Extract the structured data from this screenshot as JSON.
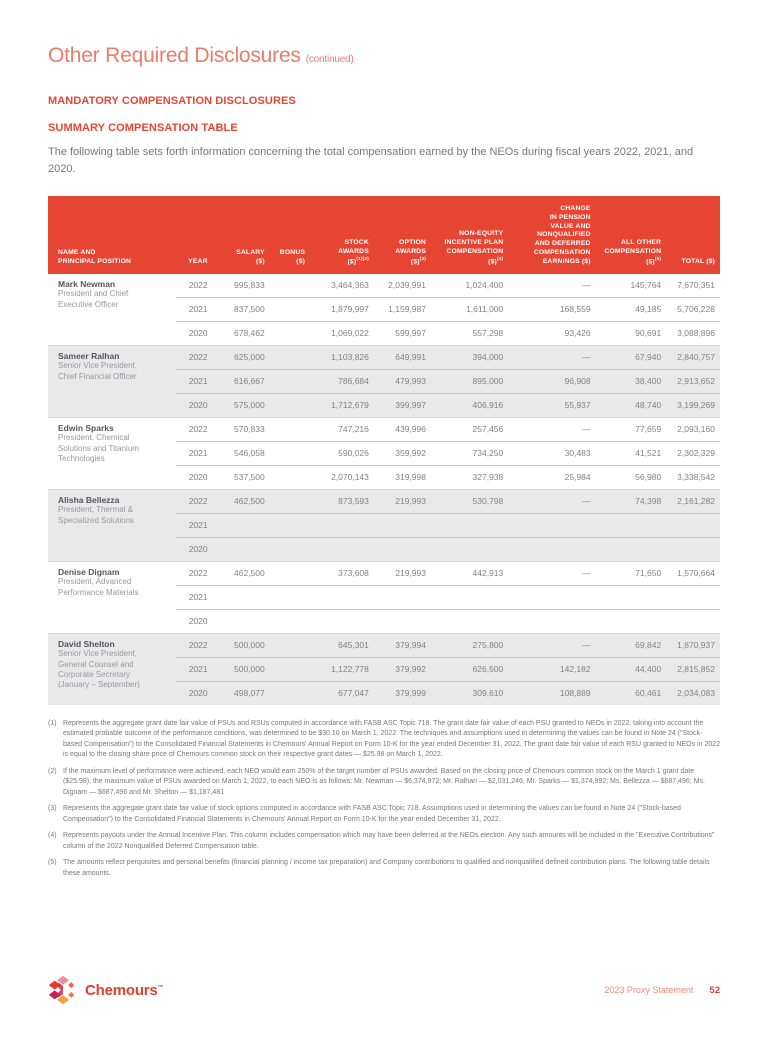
{
  "colors": {
    "brand_red": "#E74533",
    "title_coral": "#ED7B69",
    "body_gray": "#77787B",
    "shaded_block": "#E9E9EA"
  },
  "page": {
    "title": "Other Required Disclosures",
    "title_continued": "(continued)",
    "section_heading": "MANDATORY COMPENSATION DISCLOSURES",
    "subsection_heading": "SUMMARY COMPENSATION TABLE",
    "intro_text": "The following table sets forth information concerning the total compensation earned by the NEOs during fiscal years 2022, 2021, and 2020."
  },
  "table": {
    "columns": [
      {
        "lines": [
          "NAME AND",
          "PRINCIPAL POSITION"
        ],
        "sup": ""
      },
      {
        "lines": [
          "YEAR"
        ],
        "sup": ""
      },
      {
        "lines": [
          "SALARY",
          "($)"
        ],
        "sup": ""
      },
      {
        "lines": [
          "BONUS",
          "($)"
        ],
        "sup": ""
      },
      {
        "lines": [
          "STOCK",
          "AWARDS",
          "($)"
        ],
        "sup": "(1)(2)"
      },
      {
        "lines": [
          "OPTION",
          "AWARDS",
          "($)"
        ],
        "sup": "(3)"
      },
      {
        "lines": [
          "NON-EQUITY",
          "INCENTIVE PLAN",
          "COMPENSATION",
          "($)"
        ],
        "sup": "(4)"
      },
      {
        "lines": [
          "CHANGE",
          "IN PENSION",
          "VALUE AND",
          "NONQUALIFIED",
          "AND DEFERRED",
          "COMPENSATION",
          "EARNINGS ($)"
        ],
        "sup": ""
      },
      {
        "lines": [
          "ALL OTHER",
          "COMPENSATION",
          "($)"
        ],
        "sup": "(5)"
      },
      {
        "lines": [
          "TOTAL ($)"
        ],
        "sup": ""
      }
    ],
    "executives": [
      {
        "name": "Mark Newman",
        "title_lines": [
          "President and Chief",
          "Executive Officer"
        ],
        "shaded": false,
        "rows": [
          {
            "year": "2022",
            "salary": "995,833",
            "bonus": "",
            "stock": "3,464,363",
            "option": "2,039,991",
            "non_equity": "1,024,400",
            "pension": "—",
            "all_other": "145,764",
            "total": "7,670,351"
          },
          {
            "year": "2021",
            "salary": "837,500",
            "bonus": "",
            "stock": "1,879,997",
            "option": "1,159,987",
            "non_equity": "1,611,000",
            "pension": "168,559",
            "all_other": "49,185",
            "total": "5,706,228"
          },
          {
            "year": "2020",
            "salary": "678,462",
            "bonus": "",
            "stock": "1,069,022",
            "option": "599,997",
            "non_equity": "557,298",
            "pension": "93,426",
            "all_other": "90,691",
            "total": "3,088,896"
          }
        ]
      },
      {
        "name": "Sameer Ralhan",
        "title_lines": [
          "Senior Vice President,",
          "Chief Financial Officer"
        ],
        "shaded": true,
        "rows": [
          {
            "year": "2022",
            "salary": "625,000",
            "bonus": "",
            "stock": "1,103,826",
            "option": "649,991",
            "non_equity": "394,000",
            "pension": "—",
            "all_other": "67,940",
            "total": "2,840,757"
          },
          {
            "year": "2021",
            "salary": "616,667",
            "bonus": "",
            "stock": "786,684",
            "option": "479,993",
            "non_equity": "895,000",
            "pension": "96,908",
            "all_other": "38,400",
            "total": "2,913,652"
          },
          {
            "year": "2020",
            "salary": "575,000",
            "bonus": "",
            "stock": "1,712,679",
            "option": "399,997",
            "non_equity": "406,916",
            "pension": "55,937",
            "all_other": "48,740",
            "total": "3,199,269"
          }
        ]
      },
      {
        "name": "Edwin Sparks",
        "title_lines": [
          "President, Chemical",
          "Solutions and Titanium",
          "Technologies"
        ],
        "shaded": false,
        "rows": [
          {
            "year": "2022",
            "salary": "570,833",
            "bonus": "",
            "stock": "747,216",
            "option": "439,996",
            "non_equity": "257,456",
            "pension": "—",
            "all_other": "77,659",
            "total": "2,093,160"
          },
          {
            "year": "2021",
            "salary": "546,058",
            "bonus": "",
            "stock": "590,026",
            "option": "359,992",
            "non_equity": "734,250",
            "pension": "30,483",
            "all_other": "41,521",
            "total": "2,302,329"
          },
          {
            "year": "2020",
            "salary": "537,500",
            "bonus": "",
            "stock": "2,070,143",
            "option": "319,998",
            "non_equity": "327,938",
            "pension": "25,984",
            "all_other": "56,980",
            "total": "3,338,542"
          }
        ]
      },
      {
        "name": "Alisha Bellezza",
        "title_lines": [
          "President, Thermal &",
          "Specialized Solutions"
        ],
        "shaded": true,
        "rows": [
          {
            "year": "2022",
            "salary": "462,500",
            "bonus": "",
            "stock": "873,593",
            "option": "219,993",
            "non_equity": "530,798",
            "pension": "—",
            "all_other": "74,398",
            "total": "2,161,282"
          },
          {
            "year": "2021",
            "salary": "",
            "bonus": "",
            "stock": "",
            "option": "",
            "non_equity": "",
            "pension": "",
            "all_other": "",
            "total": ""
          },
          {
            "year": "2020",
            "salary": "",
            "bonus": "",
            "stock": "",
            "option": "",
            "non_equity": "",
            "pension": "",
            "all_other": "",
            "total": ""
          }
        ]
      },
      {
        "name": "Denise Dignam",
        "title_lines": [
          "President, Advanced",
          "Performance Materials"
        ],
        "shaded": false,
        "rows": [
          {
            "year": "2022",
            "salary": "462,500",
            "bonus": "",
            "stock": "373,608",
            "option": "219,993",
            "non_equity": "442,913",
            "pension": "—",
            "all_other": "71,650",
            "total": "1,570,664"
          },
          {
            "year": "2021",
            "salary": "",
            "bonus": "",
            "stock": "",
            "option": "",
            "non_equity": "",
            "pension": "",
            "all_other": "",
            "total": ""
          },
          {
            "year": "2020",
            "salary": "",
            "bonus": "",
            "stock": "",
            "option": "",
            "non_equity": "",
            "pension": "",
            "all_other": "",
            "total": ""
          }
        ]
      },
      {
        "name": "David Shelton",
        "title_lines": [
          "Senior Vice President,",
          "General Counsel and",
          "Corporate Secretary",
          "(January – September)"
        ],
        "shaded": true,
        "rows": [
          {
            "year": "2022",
            "salary": "500,000",
            "bonus": "",
            "stock": "645,301",
            "option": "379,994",
            "non_equity": "275,800",
            "pension": "—",
            "all_other": "69,842",
            "total": "1,870,937"
          },
          {
            "year": "2021",
            "salary": "500,000",
            "bonus": "",
            "stock": "1,122,778",
            "option": "379,992",
            "non_equity": "626,500",
            "pension": "142,182",
            "all_other": "44,400",
            "total": "2,815,852"
          },
          {
            "year": "2020",
            "salary": "498,077",
            "bonus": "",
            "stock": "677,047",
            "option": "379,999",
            "non_equity": "309,610",
            "pension": "108,889",
            "all_other": "60,461",
            "total": "2,034,083"
          }
        ]
      }
    ]
  },
  "footnotes": [
    {
      "marker": "(1)",
      "text": "Represents the aggregate grant date fair value of PSUs and RSUs computed in accordance with FASB ASC Topic 718. The grant date fair value of each PSU granted to NEOs in 2022, taking into account the estimated probable outcome of the performance conditions, was determined to be $30.10 on March 1, 2022. The techniques and assumptions used in determining the values can be found in Note 24 (\"Stock-based Compensation\") to the Consolidated Financial Statements in Chemours' Annual Report on Form 10-K for the year ended December 31, 2022. The grant date fair value of each RSU granted to NEOs in 2022 is equal to the closing share price of Chemours common stock on their respective grant dates — $25.98 on March 1, 2022."
    },
    {
      "marker": "(2)",
      "text": "If the maximum level of performance were achieved, each NEO would earn 250% of the target number of PSUs awarded. Based on the closing price of Chemours common stock on the March 1 grant date ($25.98), the maximum value of PSUs awarded on March 1, 2022, to each NEO is as follows: Mr. Newman — $6,374,972; Mr. Ralhan — $2,031,246; Mr. Sparks — $1,374,992; Ms. Bellezza — $687,496; Ms. Dignam — $687,496 and Mr. Shelton — $1,187,481"
    },
    {
      "marker": "(3)",
      "text": "Represents the aggregate grant date fair value of stock options computed in accordance with FASB ASC Topic 718. Assumptions used in determining the values can be found in Note 24 (\"Stock-based Compensation\") to the Consolidated Financial Statements in Chemours' Annual Report on Form 10-K for the year ended December 31, 2022."
    },
    {
      "marker": "(4)",
      "text": "Represents payouts under the Annual Incentive Plan. This column includes compensation which may have been deferred at the NEOs election. Any such amounts will be included in the \"Executive Contributions\" column of the 2022 Nonqualified Deferred Compensation table."
    },
    {
      "marker": "(5)",
      "text": "The amounts reflect perquisites and personal benefits (financial planning / income tax preparation) and Company contributions to qualified and nonqualified defined contribution plans. The following table details these amounts."
    }
  ],
  "footer": {
    "brand": "Chemours",
    "trademark": "™",
    "document_label": "2023 Proxy Statement",
    "page_number": "52"
  }
}
